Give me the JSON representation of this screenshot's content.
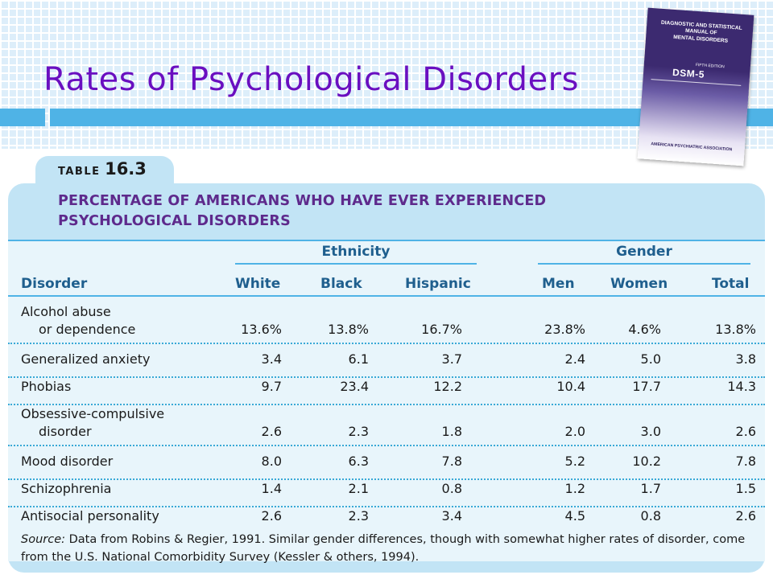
{
  "slide": {
    "title": "Rates of Psychological Disorders"
  },
  "book": {
    "title_lines": [
      "DIAGNOSTIC AND STATISTICAL",
      "MANUAL OF",
      "MENTAL DISORDERS"
    ],
    "edition": "FIFTH EDITION",
    "short": "DSM-5",
    "publisher": "AMERICAN PSYCHIATRIC ASSOCIATION"
  },
  "table": {
    "label_word": "TABLE",
    "label_number": "16.3",
    "heading_line1": "PERCENTAGE OF AMERICANS WHO HAVE EVER EXPERIENCED",
    "heading_line2": "PSYCHOLOGICAL DISORDERS",
    "group_ethnicity": "Ethnicity",
    "group_gender": "Gender",
    "columns": [
      "Disorder",
      "White",
      "Black",
      "Hispanic",
      "Men",
      "Women",
      "Total"
    ],
    "rows": [
      {
        "label1": "Alcohol abuse",
        "label2": "or dependence",
        "values": [
          "13.6%",
          "13.8%",
          "16.7%",
          "23.8%",
          "4.6%",
          "13.8%"
        ]
      },
      {
        "label1": "Generalized anxiety",
        "label2": "",
        "values": [
          "3.4",
          "6.1",
          "3.7",
          "2.4",
          "5.0",
          "3.8"
        ]
      },
      {
        "label1": "Phobias",
        "label2": "",
        "values": [
          "9.7",
          "23.4",
          "12.2",
          "10.4",
          "17.7",
          "14.3"
        ]
      },
      {
        "label1": "Obsessive-compulsive",
        "label2": "disorder",
        "values": [
          "2.6",
          "2.3",
          "1.8",
          "2.0",
          "3.0",
          "2.6"
        ]
      },
      {
        "label1": "Mood disorder",
        "label2": "",
        "values": [
          "8.0",
          "6.3",
          "7.8",
          "5.2",
          "10.2",
          "7.8"
        ]
      },
      {
        "label1": "Schizophrenia",
        "label2": "",
        "values": [
          "1.4",
          "2.1",
          "0.8",
          "1.2",
          "1.7",
          "1.5"
        ]
      },
      {
        "label1": "Antisocial personality",
        "label2": "",
        "values": [
          "2.6",
          "2.3",
          "3.4",
          "4.5",
          "0.8",
          "2.6"
        ]
      }
    ],
    "source_label": "Source:",
    "source_text": " Data from Robins & Regier, 1991. Similar gender differences, though with somewhat higher rates of disorder, come from the U.S. National Comorbidity Survey (Kessler & others, 1994)."
  },
  "colors": {
    "title": "#6a0fc0",
    "accent_bar": "#4fb3e6",
    "table_card": "#c2e4f5",
    "table_body": "#e8f5fb",
    "heading": "#5e2a8c",
    "column_head": "#1f5f8e"
  }
}
